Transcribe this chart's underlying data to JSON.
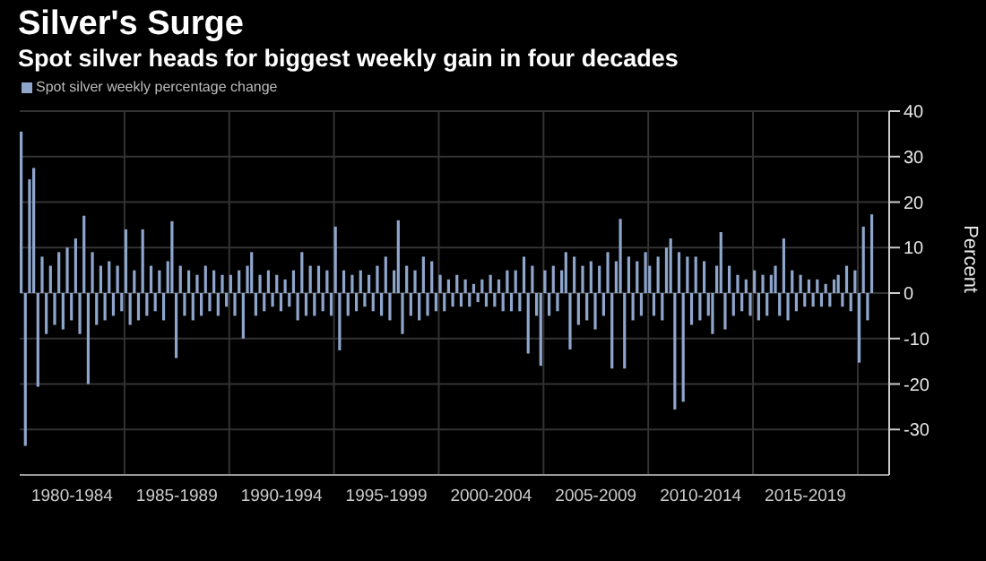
{
  "chart_data": {
    "type": "bar",
    "title": "Silver's Surge",
    "subtitle": "Spot silver heads for biggest weekly gain in four decades",
    "ylabel": "Percent",
    "categories": [
      null,
      null,
      null,
      null,
      null,
      null,
      null,
      null,
      null,
      null,
      null,
      null,
      "1980-1984",
      null,
      null,
      null,
      null,
      null,
      null,
      null,
      null,
      null,
      null,
      null,
      null,
      null,
      null,
      null,
      null,
      null,
      null,
      null,
      null,
      null,
      null,
      null,
      null,
      "1985-1989",
      null,
      null,
      null,
      null,
      null,
      null,
      null,
      null,
      null,
      null,
      null,
      null,
      null,
      null,
      null,
      null,
      null,
      null,
      null,
      null,
      null,
      null,
      null,
      null,
      "1990-1994",
      null,
      null,
      null,
      null,
      null,
      null,
      null,
      null,
      null,
      null,
      null,
      null,
      null,
      null,
      null,
      null,
      null,
      null,
      null,
      null,
      null,
      null,
      null,
      null,
      "1995-1999",
      null,
      null,
      null,
      null,
      null,
      null,
      null,
      null,
      null,
      null,
      null,
      null,
      null,
      null,
      null,
      null,
      null,
      null,
      null,
      null,
      null,
      null,
      null,
      null,
      "2000-2004",
      null,
      null,
      null,
      null,
      null,
      null,
      null,
      null,
      null,
      null,
      null,
      null,
      null,
      null,
      null,
      null,
      null,
      null,
      null,
      null,
      null,
      null,
      null,
      null,
      "2005-2009",
      null,
      null,
      null,
      null,
      null,
      null,
      null,
      null,
      null,
      null,
      null,
      null,
      null,
      null,
      null,
      null,
      null,
      null,
      null,
      null,
      null,
      null,
      null,
      null,
      "2010-2014",
      null,
      null,
      null,
      null,
      null,
      null,
      null,
      null,
      null,
      null,
      null,
      null,
      null,
      null,
      null,
      null,
      null,
      null,
      null,
      null,
      null,
      null,
      null,
      null,
      "2015-2019",
      null,
      null,
      null,
      null,
      null,
      null,
      null,
      null,
      null,
      null,
      null,
      null,
      null,
      null,
      null,
      null
    ],
    "series": [
      {
        "name": "Spot silver weekly percentage change",
        "color": "#8fa6cc",
        "values": [
          35.5,
          -33.6,
          25,
          27.5,
          -20.6,
          8,
          -9,
          6,
          -7,
          9,
          -8,
          10,
          -6,
          12,
          -9,
          17,
          -20,
          9,
          -7,
          6,
          -6,
          7,
          -5,
          6,
          -4,
          14,
          -7,
          5,
          -6,
          14,
          -5,
          6,
          -4,
          5,
          -6,
          7,
          15.8,
          -14.3,
          6,
          -5,
          5,
          -6,
          4,
          -5,
          6,
          -4,
          5,
          -5,
          4,
          -3,
          4,
          -5,
          5,
          -10,
          6,
          9,
          -5,
          4,
          -4,
          5,
          -3,
          4,
          -4,
          3,
          -3,
          5,
          -6,
          9,
          -5,
          6,
          -5,
          6,
          -4,
          5,
          -5,
          14.6,
          -12.6,
          5,
          -5,
          4,
          -4,
          5,
          -3,
          4,
          -4,
          6,
          -5,
          8,
          -6,
          5,
          16,
          -9,
          6,
          -5,
          5,
          -6,
          8,
          -5,
          7,
          -4,
          4,
          -4,
          3,
          -3,
          4,
          -3,
          3,
          -3,
          2,
          -2,
          3,
          -3,
          4,
          -3,
          3,
          -4,
          5,
          -4,
          5,
          -4,
          8,
          -13.3,
          6,
          -5,
          -16,
          5,
          -5,
          6,
          -4,
          5,
          9,
          -12.4,
          8,
          -7,
          6,
          -6,
          7,
          -8,
          6,
          -5,
          9,
          -16.6,
          7,
          16.3,
          -16.6,
          8,
          -6,
          7,
          -5,
          9,
          6,
          -5,
          8,
          -6,
          10,
          12,
          -25.6,
          9,
          -23.9,
          8,
          -7,
          8,
          -6,
          7,
          -5,
          -9,
          6,
          13.4,
          -8,
          6,
          -5,
          4,
          -4,
          3,
          -5,
          5,
          -6,
          4,
          -5,
          4,
          6,
          -5,
          12,
          -6,
          5,
          -4,
          4,
          -3,
          3,
          -3,
          3,
          -3,
          2,
          -3,
          3,
          4,
          -3,
          6,
          -4,
          5,
          -15.3,
          14.6,
          -6,
          17.3
        ]
      }
    ],
    "ylim": [
      -40,
      40
    ],
    "yticks": [
      -30,
      -20,
      -10,
      0,
      10,
      20,
      30,
      40
    ],
    "grid": true,
    "legend": "top left"
  }
}
